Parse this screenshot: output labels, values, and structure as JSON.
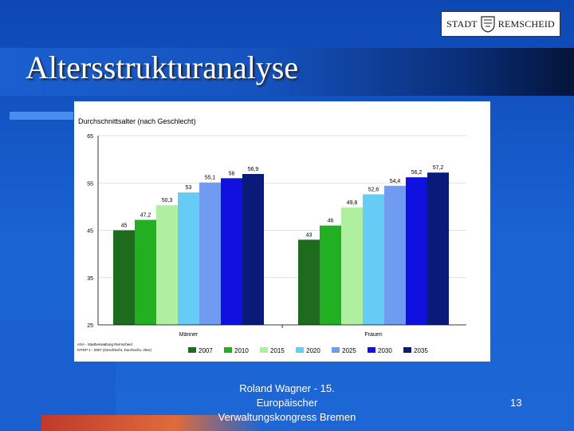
{
  "slide": {
    "title": "Altersstrukturanalyse",
    "logo_left": "STADT",
    "logo_right": "REMSCHEID",
    "footer_lines": [
      "Roland Wagner - 15.",
      "Europäischer",
      "Verwaltungskongress Bremen"
    ],
    "page_number": "13"
  },
  "chart_data": {
    "type": "bar",
    "title": "Durchschnittsalter (nach Geschlecht)",
    "categories": [
      "Männer",
      "Frauen"
    ],
    "ylim": [
      25,
      65
    ],
    "yticks": [
      "25",
      "35",
      "45",
      "55",
      "65"
    ],
    "legend_position": "bottom",
    "series": [
      {
        "name": "2007",
        "color": "#1e6b1e",
        "values": [
          45,
          43
        ],
        "labels": [
          "45",
          "43"
        ]
      },
      {
        "name": "2010",
        "color": "#22b022",
        "values": [
          47.2,
          46
        ],
        "labels": [
          "47,2",
          "46"
        ]
      },
      {
        "name": "2015",
        "color": "#aef0a0",
        "values": [
          50.3,
          49.8
        ],
        "labels": [
          "50,3",
          "49,8"
        ]
      },
      {
        "name": "2020",
        "color": "#66ccf5",
        "values": [
          53,
          52.6
        ],
        "labels": [
          "53",
          "52,6"
        ]
      },
      {
        "name": "2025",
        "color": "#6f9bf0",
        "values": [
          55.1,
          54.4
        ],
        "labels": [
          "55,1",
          "54,4"
        ]
      },
      {
        "name": "2030",
        "color": "#1010e0",
        "values": [
          56,
          56.2
        ],
        "labels": [
          "56",
          "56,2"
        ]
      },
      {
        "name": "2035",
        "color": "#0a1a7a",
        "values": [
          56.9,
          57.2
        ],
        "labels": [
          "56,9",
          "57,2"
        ]
      }
    ],
    "source_lines": [
      "ASA - Stadtverwaltung Remscheid",
      "KITEP 1 - 2007 (Geschlecht, Durchschn. Alter)"
    ]
  }
}
